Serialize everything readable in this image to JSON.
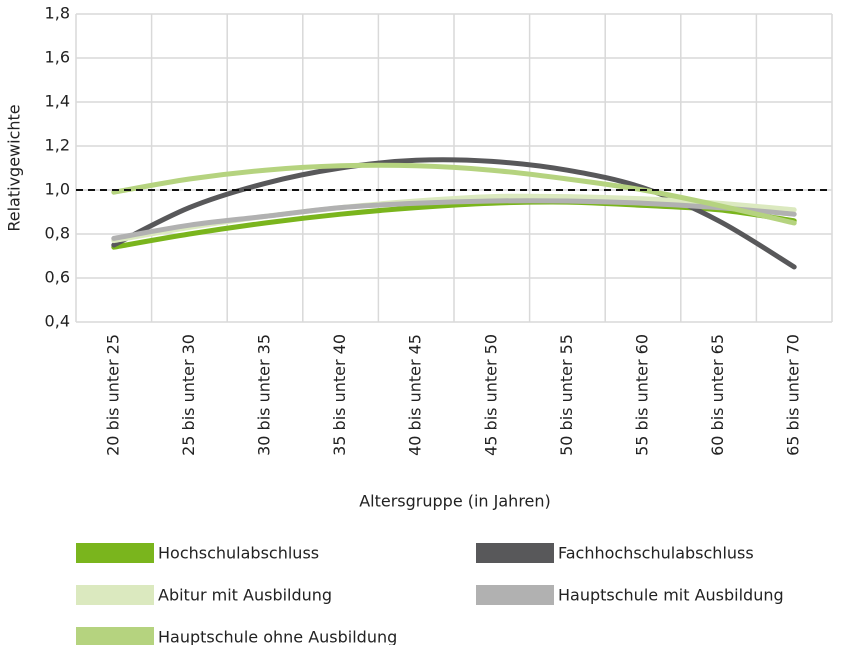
{
  "chart_data": {
    "type": "line",
    "ylabel": "Relativgewichte",
    "xlabel": "Altersgruppe (in Jahren)",
    "categories": [
      "20 bis unter 25",
      "25 bis unter 30",
      "30 bis unter 35",
      "35 bis unter 40",
      "40 bis unter 45",
      "45 bis unter 50",
      "50 bis unter 55",
      "55 bis unter 60",
      "60 bis unter 65",
      "65 bis unter 70"
    ],
    "series": [
      {
        "name": "Hochschulabschluss",
        "color": "#7ab51d",
        "values": [
          0.74,
          0.8,
          0.85,
          0.89,
          0.92,
          0.94,
          0.945,
          0.93,
          0.91,
          0.86
        ]
      },
      {
        "name": "Fachhochschulabschluss",
        "color": "#58585a",
        "values": [
          0.75,
          0.92,
          1.03,
          1.1,
          1.135,
          1.13,
          1.09,
          1.01,
          0.86,
          0.65
        ]
      },
      {
        "name": "Abitur mit Ausbildung",
        "color": "#dbe9bf",
        "values": [
          0.77,
          0.83,
          0.88,
          0.92,
          0.95,
          0.97,
          0.97,
          0.96,
          0.94,
          0.91
        ]
      },
      {
        "name": "Hauptschule mit Ausbildung",
        "color": "#b1b1b1",
        "values": [
          0.78,
          0.84,
          0.88,
          0.92,
          0.94,
          0.95,
          0.95,
          0.94,
          0.92,
          0.89
        ]
      },
      {
        "name": "Hauptschule ohne Ausbildung",
        "color": "#b5d37f",
        "values": [
          0.99,
          1.05,
          1.09,
          1.11,
          1.11,
          1.09,
          1.05,
          1.0,
          0.93,
          0.85
        ]
      }
    ],
    "ylim": [
      0.4,
      1.8
    ],
    "yticks": [
      {
        "value": 0.4,
        "label": "0,4"
      },
      {
        "value": 0.6,
        "label": "0,6"
      },
      {
        "value": 0.8,
        "label": "0,8"
      },
      {
        "value": 1.0,
        "label": "1,0"
      },
      {
        "value": 1.2,
        "label": "1,2"
      },
      {
        "value": 1.4,
        "label": "1,4"
      },
      {
        "value": 1.6,
        "label": "1,6"
      },
      {
        "value": 1.8,
        "label": "1,8"
      }
    ],
    "reference_line": 1,
    "grid": true
  }
}
